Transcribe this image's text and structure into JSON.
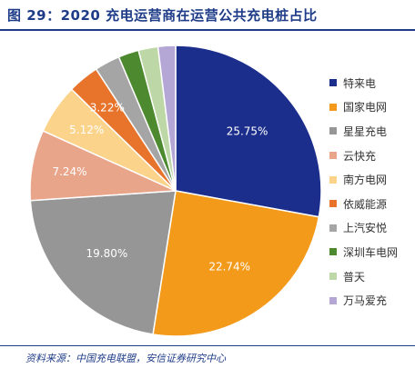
{
  "title": "图 29：2020 充电运营商在运营公共充电桩占比",
  "source": "资料来源：中国充电联盟，安信证券研究中心",
  "chart_data": {
    "type": "pie",
    "title": "图 29：2020 充电运营商在运营公共充电桩占比",
    "start_angle_deg": 0,
    "direction": "clockwise",
    "legend_position": "right",
    "categories": [
      "特来电",
      "国家电网",
      "星星充电",
      "云快充",
      "南方电网",
      "依威能源",
      "上汽安悦",
      "深圳车电网",
      "普天",
      "万马爱充"
    ],
    "values": [
      25.75,
      22.74,
      19.8,
      7.24,
      5.12,
      3.22,
      2.6,
      2.1,
      2.0,
      1.8
    ],
    "data_labels": [
      "25.75%",
      "22.74%",
      "19.80%",
      "7.24%",
      "5.12%",
      "3.22%",
      "",
      "",
      "",
      ""
    ],
    "colors": [
      "#1b2e8c",
      "#f39a1b",
      "#969696",
      "#e9a58a",
      "#fbd38a",
      "#e8742c",
      "#a5a5a5",
      "#4d8a2f",
      "#bdd7a6",
      "#b4a7d6"
    ],
    "label_colors": [
      "#ffffff",
      "#ffffff",
      "#ffffff",
      "#ffffff",
      "#ffffff",
      "#ffffff",
      "#ffffff",
      "#ffffff",
      "#ffffff",
      "#ffffff"
    ]
  }
}
